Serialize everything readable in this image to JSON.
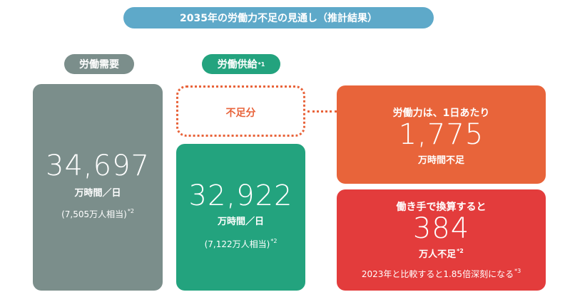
{
  "title": "2035年の労働力不足の見通し（推計結果）",
  "demand": {
    "label": "労働需要",
    "value": "34,697",
    "unit": "万時間／日",
    "equivalent": "(7,505万人相当)",
    "note": "*2"
  },
  "supply": {
    "label": "労働供給",
    "label_note": "*1",
    "value": "32,922",
    "unit": "万時間／日",
    "equivalent": "(7,122万人相当)",
    "note": "*2"
  },
  "shortage": {
    "label": "不足分",
    "hours": {
      "lead": "労働力は、1日あたり",
      "value": "1,775",
      "unit": "万時間不足"
    },
    "workers": {
      "lead": "働き手で換算すると",
      "value": "384",
      "unit": "万人不足",
      "unit_note": "*2",
      "comparison": "2023年と比較すると1.85倍深刻になる",
      "comparison_note": "*3"
    }
  }
}
